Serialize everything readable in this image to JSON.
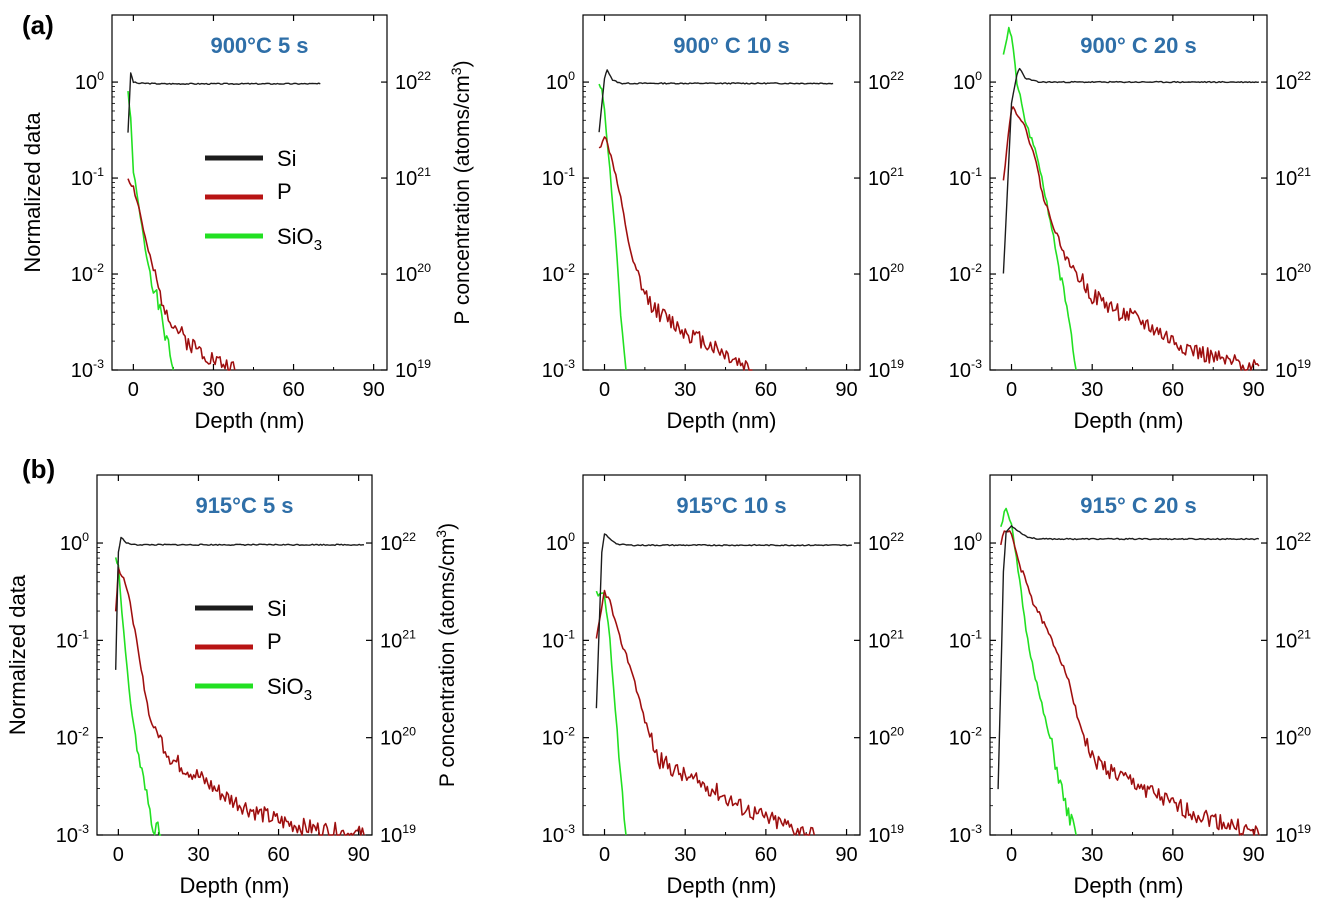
{
  "figure": {
    "row_labels": [
      "(a)",
      "(b)"
    ],
    "y_label_left": "Normalized data",
    "y_label_right_prefix": "P concentration (atoms/cm",
    "y_label_right_sup": "3",
    "y_label_right_suffix": ")",
    "x_label": "Depth (nm)"
  },
  "legend": [
    {
      "base": "Si",
      "sub": ""
    },
    {
      "base": "P",
      "sub": ""
    },
    {
      "base": "SiO",
      "sub": "3"
    }
  ],
  "colors": {
    "Si": "#1c1c1c",
    "P": "#b81414",
    "SiO3": "#22e022",
    "title": "#2f6fa8"
  },
  "chart_data": [
    {
      "type": "line",
      "title": "900°C 5 s",
      "xlim": [
        -8,
        95
      ],
      "ylim": [
        0.001,
        5
      ],
      "xticks": [
        0,
        30,
        60,
        90
      ],
      "yscale": "log",
      "yticks_left": [
        "10^0",
        "10^-1",
        "10^-2",
        "10^-3"
      ],
      "yticks_right": [
        "10^22",
        "10^21",
        "10^20",
        "10^19"
      ],
      "series": [
        {
          "name": "Si",
          "x": [
            -2,
            -1,
            0,
            2,
            5,
            10,
            20,
            40,
            60,
            70
          ],
          "y": [
            0.3,
            1.25,
            1.0,
            0.97,
            0.97,
            0.96,
            0.96,
            0.96,
            0.96,
            0.96
          ]
        },
        {
          "name": "P",
          "x": [
            -2,
            0,
            2,
            5,
            10,
            15,
            20,
            30,
            38
          ],
          "y": [
            0.1,
            0.08,
            0.05,
            0.02,
            0.006,
            0.003,
            0.002,
            0.0013,
            0.001
          ]
        },
        {
          "name": "SiO3",
          "x": [
            -2,
            -1,
            0,
            2,
            5,
            10,
            15
          ],
          "y": [
            0.8,
            0.4,
            0.12,
            0.05,
            0.015,
            0.004,
            0.001
          ]
        }
      ]
    },
    {
      "type": "line",
      "title": "900° C 10 s",
      "xlim": [
        -8,
        95
      ],
      "ylim": [
        0.001,
        5
      ],
      "xticks": [
        0,
        30,
        60,
        90
      ],
      "yscale": "log",
      "yticks_left": [
        "10^0",
        "10^-1",
        "10^-2",
        "10^-3"
      ],
      "yticks_right": [
        "10^22",
        "10^21",
        "10^20",
        "10^19"
      ],
      "series": [
        {
          "name": "Si",
          "x": [
            -2,
            0,
            1,
            3,
            6,
            10,
            30,
            60,
            85
          ],
          "y": [
            0.3,
            1.1,
            1.35,
            1.05,
            0.97,
            0.97,
            0.97,
            0.97,
            0.97
          ]
        },
        {
          "name": "P",
          "x": [
            -2,
            0,
            3,
            6,
            10,
            15,
            20,
            30,
            40,
            50,
            55
          ],
          "y": [
            0.2,
            0.28,
            0.15,
            0.06,
            0.015,
            0.006,
            0.004,
            0.0025,
            0.0018,
            0.0012,
            0.001
          ]
        },
        {
          "name": "SiO3",
          "x": [
            -2,
            -1,
            0,
            2,
            4,
            6,
            8
          ],
          "y": [
            0.9,
            0.9,
            0.5,
            0.12,
            0.025,
            0.004,
            0.001
          ]
        }
      ]
    },
    {
      "type": "line",
      "title": "900° C 20 s",
      "xlim": [
        -8,
        95
      ],
      "ylim": [
        0.001,
        5
      ],
      "xticks": [
        0,
        30,
        60,
        90
      ],
      "yscale": "log",
      "yticks_left": [
        "10^0",
        "10^-1",
        "10^-2",
        "10^-3"
      ],
      "yticks_right": [
        "10^22",
        "10^21",
        "10^20",
        "10^19"
      ],
      "series": [
        {
          "name": "Si",
          "x": [
            -3,
            0,
            2,
            3,
            5,
            10,
            30,
            60,
            92
          ],
          "y": [
            0.01,
            0.6,
            1.2,
            1.4,
            1.1,
            1.0,
            1.0,
            1.0,
            1.0
          ]
        },
        {
          "name": "P",
          "x": [
            -3,
            0,
            3,
            8,
            12,
            20,
            30,
            40,
            50,
            60,
            70,
            80,
            92
          ],
          "y": [
            0.1,
            0.55,
            0.45,
            0.2,
            0.06,
            0.015,
            0.006,
            0.004,
            0.003,
            0.002,
            0.0015,
            0.0012,
            0.0011
          ]
        },
        {
          "name": "SiO3",
          "x": [
            -3,
            -1,
            0,
            2,
            5,
            10,
            15,
            20,
            24
          ],
          "y": [
            2.0,
            3.6,
            3.0,
            1.0,
            0.4,
            0.15,
            0.03,
            0.005,
            0.001
          ]
        }
      ]
    },
    {
      "type": "line",
      "title": "915°C 5 s",
      "xlim": [
        -8,
        95
      ],
      "ylim": [
        0.001,
        5
      ],
      "xticks": [
        0,
        30,
        60,
        90
      ],
      "yscale": "log",
      "yticks_left": [
        "10^0",
        "10^-1",
        "10^-2",
        "10^-3"
      ],
      "yticks_right": [
        "10^22",
        "10^21",
        "10^20",
        "10^19"
      ],
      "series": [
        {
          "name": "Si",
          "x": [
            -1,
            0,
            1,
            3,
            6,
            10,
            30,
            60,
            92
          ],
          "y": [
            0.05,
            0.8,
            1.15,
            1.0,
            0.96,
            0.96,
            0.96,
            0.96,
            0.96
          ]
        },
        {
          "name": "P",
          "x": [
            -1,
            0,
            2,
            5,
            8,
            12,
            20,
            30,
            40,
            50,
            60,
            70,
            80,
            92
          ],
          "y": [
            0.2,
            0.55,
            0.45,
            0.2,
            0.06,
            0.015,
            0.006,
            0.004,
            0.0025,
            0.0018,
            0.0014,
            0.0012,
            0.0011,
            0.001
          ]
        },
        {
          "name": "SiO3",
          "x": [
            -1,
            0,
            2,
            4,
            7,
            10,
            13,
            16
          ],
          "y": [
            0.7,
            0.6,
            0.12,
            0.03,
            0.008,
            0.003,
            0.0013,
            0.001
          ]
        }
      ]
    },
    {
      "type": "line",
      "title": "915°C 10 s",
      "xlim": [
        -8,
        95
      ],
      "ylim": [
        0.001,
        5
      ],
      "xticks": [
        0,
        30,
        60,
        90
      ],
      "yscale": "log",
      "yticks_left": [
        "10^0",
        "10^-1",
        "10^-2",
        "10^-3"
      ],
      "yticks_right": [
        "10^22",
        "10^21",
        "10^20",
        "10^19"
      ],
      "series": [
        {
          "name": "Si",
          "x": [
            -3,
            -1,
            0,
            2,
            5,
            10,
            30,
            60,
            92
          ],
          "y": [
            0.02,
            0.8,
            1.25,
            1.1,
            0.97,
            0.95,
            0.95,
            0.95,
            0.95
          ]
        },
        {
          "name": "P",
          "x": [
            -3,
            0,
            2,
            5,
            10,
            15,
            20,
            30,
            40,
            50,
            60,
            70,
            78
          ],
          "y": [
            0.1,
            0.32,
            0.25,
            0.12,
            0.05,
            0.015,
            0.006,
            0.004,
            0.003,
            0.002,
            0.0015,
            0.0012,
            0.001
          ]
        },
        {
          "name": "SiO3",
          "x": [
            -3,
            -1,
            0,
            2,
            4,
            6,
            8
          ],
          "y": [
            0.3,
            0.3,
            0.3,
            0.1,
            0.02,
            0.004,
            0.001
          ]
        }
      ]
    },
    {
      "type": "line",
      "title": "915° C 20 s",
      "xlim": [
        -8,
        95
      ],
      "ylim": [
        0.001,
        5
      ],
      "xticks": [
        0,
        30,
        60,
        90
      ],
      "yscale": "log",
      "yticks_left": [
        "10^0",
        "10^-1",
        "10^-2",
        "10^-3"
      ],
      "yticks_right": [
        "10^22",
        "10^21",
        "10^20",
        "10^19"
      ],
      "series": [
        {
          "name": "Si",
          "x": [
            -5,
            -3,
            -2,
            0,
            3,
            6,
            10,
            30,
            60,
            92
          ],
          "y": [
            0.003,
            0.5,
            1.3,
            1.5,
            1.3,
            1.15,
            1.1,
            1.1,
            1.1,
            1.1
          ]
        },
        {
          "name": "P",
          "x": [
            -4,
            -2,
            0,
            3,
            8,
            15,
            20,
            25,
            30,
            40,
            50,
            60,
            70,
            80,
            92
          ],
          "y": [
            1.0,
            1.4,
            1.2,
            0.6,
            0.25,
            0.1,
            0.05,
            0.015,
            0.006,
            0.004,
            0.003,
            0.002,
            0.0016,
            0.0013,
            0.001
          ]
        },
        {
          "name": "SiO3",
          "x": [
            -4,
            -2,
            0,
            3,
            6,
            10,
            15,
            20,
            24
          ],
          "y": [
            1.5,
            2.4,
            1.5,
            0.4,
            0.1,
            0.03,
            0.008,
            0.002,
            0.001
          ]
        }
      ]
    }
  ]
}
